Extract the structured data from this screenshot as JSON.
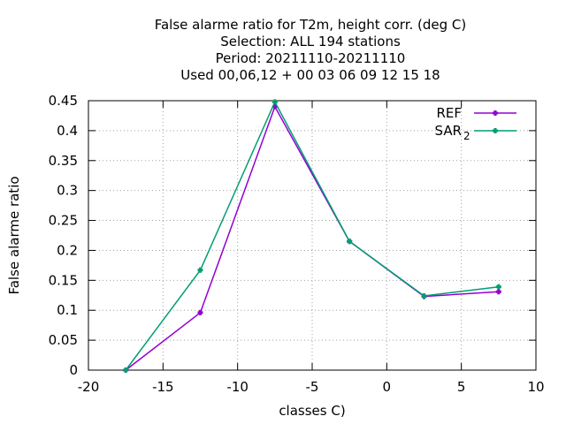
{
  "chart_data": {
    "type": "line",
    "title_lines": [
      "False alarme ratio  for T2m, height corr. (deg C)",
      "Selection: ALL    194 stations",
      "Period: 20211110-20211110",
      "Used  00,06,12  + 00 03 06 09 12 15 18"
    ],
    "xlabel": "classes C)",
    "ylabel": "False alarme ratio",
    "xlim": [
      -20,
      10
    ],
    "ylim": [
      0,
      0.45
    ],
    "xticks": [
      -20,
      -15,
      -10,
      -5,
      0,
      5,
      10
    ],
    "yticks": [
      0,
      0.05,
      0.1,
      0.15,
      0.2,
      0.25,
      0.3,
      0.35,
      0.4,
      0.45
    ],
    "grid": true,
    "legend_position": "top-right",
    "series": [
      {
        "name": "REF",
        "color": "#9400d3",
        "x": [
          -17.5,
          -12.5,
          -7.5,
          -2.5,
          2.5,
          7.5
        ],
        "y": [
          0.0,
          0.096,
          0.44,
          0.215,
          0.123,
          0.131
        ]
      },
      {
        "name": "SAR",
        "name_sub": "2",
        "color": "#009e73",
        "x": [
          -17.5,
          -12.5,
          -7.5,
          -2.5,
          2.5,
          7.5
        ],
        "y": [
          0.0,
          0.167,
          0.448,
          0.215,
          0.124,
          0.139
        ]
      }
    ]
  }
}
